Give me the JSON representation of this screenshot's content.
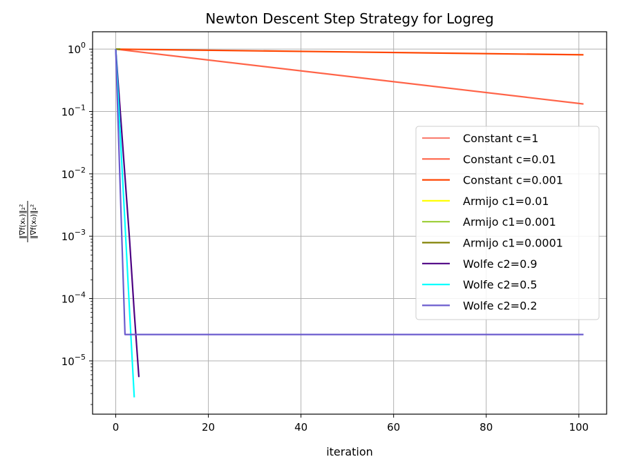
{
  "chart_data": {
    "type": "line",
    "title": "Newton Descent Step Strategy for Logreg",
    "xlabel": "iteration",
    "ylabel": "‖∇f(x_k)‖²₂ / ‖∇f(x_0)‖²₂",
    "ylabel_num": "‖∇f(xₖ)‖₂²",
    "ylabel_den": "‖∇f(x₀)‖₂²",
    "xlim": [
      -5,
      106
    ],
    "ylim": [
      1.4e-06,
      1.9
    ],
    "yscale": "log",
    "grid": true,
    "legend_position": "center-right",
    "xticks": [
      {
        "value": 0,
        "label": "0"
      },
      {
        "value": 20,
        "label": "20"
      },
      {
        "value": 40,
        "label": "40"
      },
      {
        "value": 60,
        "label": "60"
      },
      {
        "value": 80,
        "label": "80"
      },
      {
        "value": 100,
        "label": "100"
      }
    ],
    "yticks": [
      {
        "value": 1,
        "base": "10",
        "exp": "0"
      },
      {
        "value": 0.1,
        "base": "10",
        "exp": "−1"
      },
      {
        "value": 0.01,
        "base": "10",
        "exp": "−2"
      },
      {
        "value": 0.001,
        "base": "10",
        "exp": "−3"
      },
      {
        "value": 0.0001,
        "base": "10",
        "exp": "−4"
      },
      {
        "value": 1e-05,
        "base": "10",
        "exp": "−5"
      }
    ],
    "series": [
      {
        "name": "Constant c=1",
        "color": "#fa8072",
        "x": [
          0,
          1
        ],
        "y": [
          1,
          1
        ]
      },
      {
        "name": "Constant c=0.01",
        "color": "#ff6347",
        "x": [
          0,
          101
        ],
        "y": [
          1,
          0.132
        ]
      },
      {
        "name": "Constant c=0.001",
        "color": "#ff4500",
        "x": [
          0,
          101
        ],
        "y": [
          1,
          0.81
        ]
      },
      {
        "name": "Armijo c1=0.01",
        "color": "#ffff00",
        "x": [
          0,
          1
        ],
        "y": [
          1,
          1
        ]
      },
      {
        "name": "Armijo c1=0.001",
        "color": "#9acd32",
        "x": [
          0,
          1
        ],
        "y": [
          1,
          1
        ]
      },
      {
        "name": "Armijo c1=0.0001",
        "color": "#808000",
        "x": [
          0,
          1
        ],
        "y": [
          1,
          1
        ]
      },
      {
        "name": "Wolfe c2=0.9",
        "color": "#4b0082",
        "x": [
          0,
          1,
          2,
          3,
          4,
          5
        ],
        "y": [
          1,
          0.095,
          0.009,
          0.00085,
          6e-05,
          5.5e-06
        ]
      },
      {
        "name": "Wolfe c2=0.5",
        "color": "#00ffff",
        "x": [
          0,
          1,
          2,
          3,
          4
        ],
        "y": [
          1,
          0.04,
          0.0016,
          6e-05,
          2.6e-06
        ]
      },
      {
        "name": "Wolfe c2=0.2",
        "color": "#6a5acd",
        "x": [
          0,
          1,
          2,
          101
        ],
        "y": [
          1,
          0.005,
          2.65e-05,
          2.65e-05
        ]
      }
    ]
  }
}
